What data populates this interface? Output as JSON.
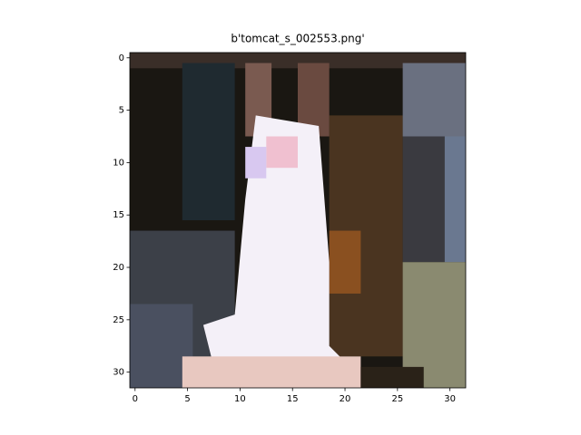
{
  "chart_data": {
    "type": "image",
    "title": "b'tomcat_s_002553.png'",
    "xlim": [
      -0.5,
      31.5
    ],
    "ylim": [
      31.5,
      -0.5
    ],
    "xticks": [
      0,
      5,
      10,
      15,
      20,
      25,
      30
    ],
    "yticks": [
      0,
      5,
      10,
      15,
      20,
      25,
      30
    ]
  }
}
